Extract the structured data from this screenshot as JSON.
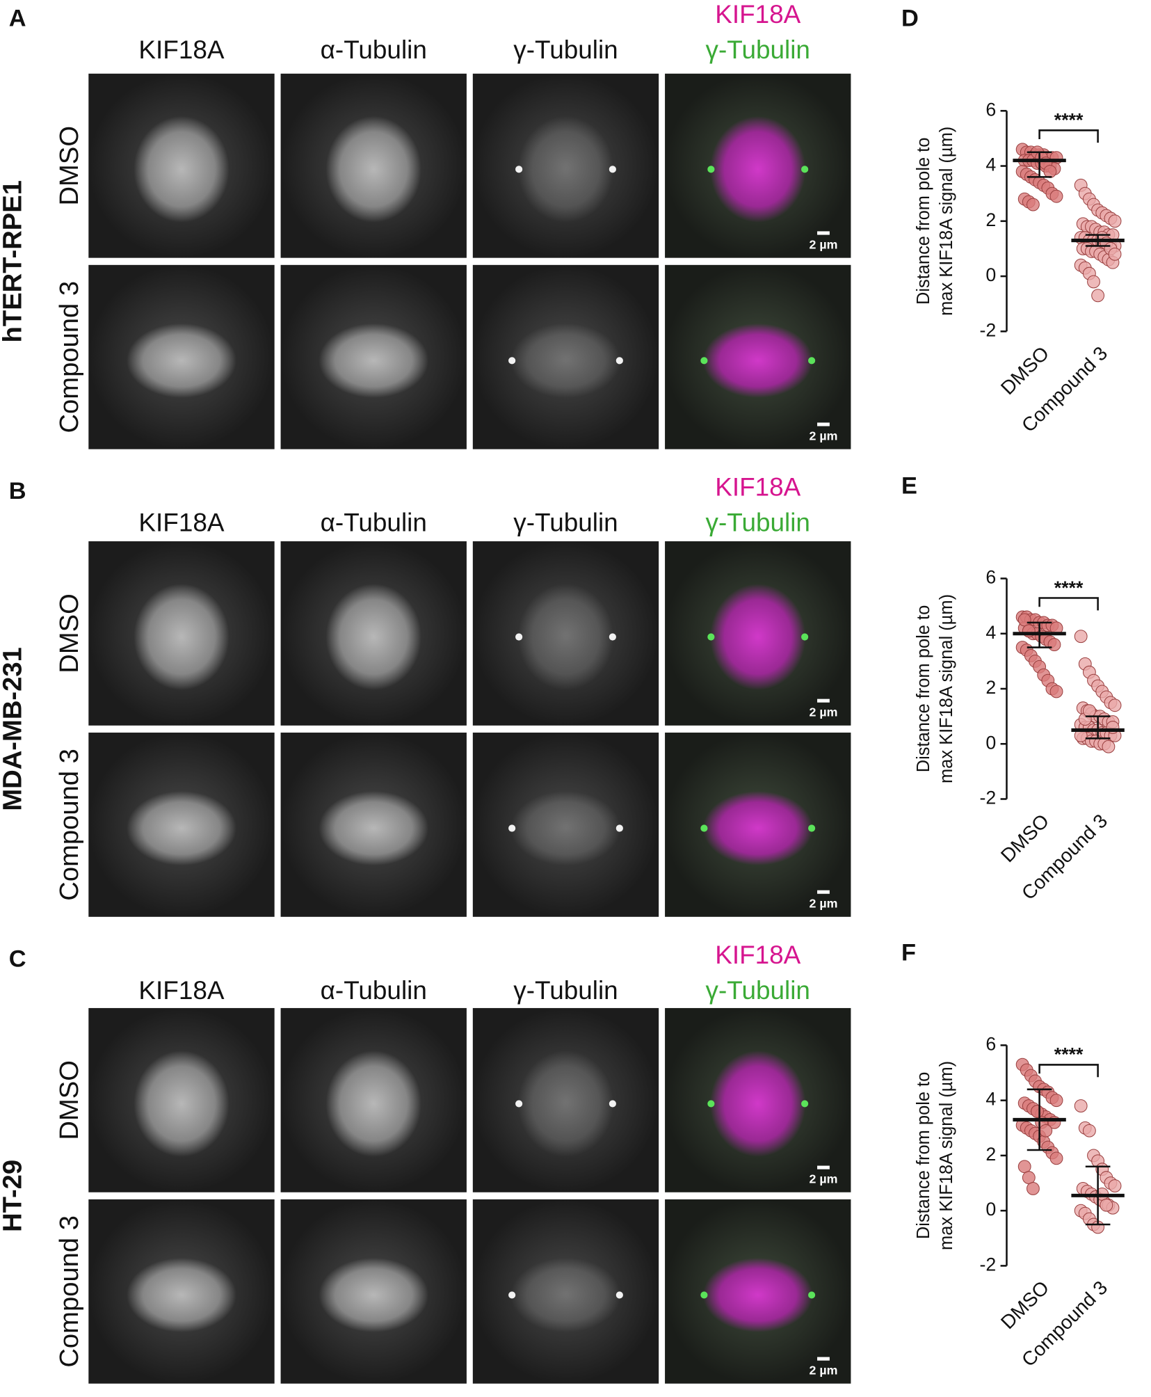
{
  "figure": {
    "panels": [
      {
        "letter": "A",
        "cell_line": "hTERT-RPE1",
        "channels": [
          "KIF18A",
          "α-Tubulin",
          "γ-Tubulin"
        ],
        "merge": [
          "KIF18A",
          "γ-Tubulin"
        ],
        "rows": [
          "DMSO",
          "Compound 3"
        ],
        "scale_bars": [
          "2 µm",
          "2 µm"
        ]
      },
      {
        "letter": "B",
        "cell_line": "MDA-MB-231",
        "channels": [
          "KIF18A",
          "α-Tubulin",
          "γ-Tubulin"
        ],
        "merge": [
          "KIF18A",
          "γ-Tubulin"
        ],
        "rows": [
          "DMSO",
          "Compound 3"
        ],
        "scale_bars": [
          "2 µm",
          "2 µm"
        ]
      },
      {
        "letter": "C",
        "cell_line": "HT-29",
        "channels": [
          "KIF18A",
          "α-Tubulin",
          "γ-Tubulin"
        ],
        "merge": [
          "KIF18A",
          "γ-Tubulin"
        ],
        "rows": [
          "DMSO",
          "Compound 3"
        ],
        "scale_bars": [
          "2 µm",
          "2 µm"
        ]
      }
    ]
  },
  "chart_data": [
    {
      "type": "dotplot",
      "panel": "D",
      "ylabel": [
        "Distance from pole to",
        "max KIF18A signal (µm)"
      ],
      "categories": [
        "DMSO",
        "Compound 3"
      ],
      "colors": [
        "#d97a7a",
        "#eaa9a9"
      ],
      "significance": "****",
      "ylim": [
        -2,
        6
      ],
      "yticks": [
        -2,
        0,
        2,
        4,
        6
      ],
      "groups": [
        {
          "values": [
            4.6,
            4.5,
            4.5,
            4.4,
            4.4,
            4.4,
            4.3,
            4.3,
            4.3,
            4.2,
            4.2,
            4.2,
            4.1,
            4.1,
            4.0,
            4.0,
            3.9,
            3.8,
            3.7,
            3.6,
            3.5,
            3.4,
            3.3,
            3.2,
            3.0,
            2.9,
            2.8,
            2.7,
            2.6,
            4.5,
            4.3,
            4.1,
            3.8
          ],
          "center": 4.2,
          "whisker": [
            3.6,
            4.5
          ]
        },
        {
          "values": [
            3.3,
            3.0,
            2.8,
            2.6,
            2.4,
            2.3,
            2.2,
            2.1,
            2.0,
            1.9,
            1.8,
            1.8,
            1.7,
            1.6,
            1.6,
            1.5,
            1.5,
            1.4,
            1.4,
            1.3,
            1.3,
            1.3,
            1.2,
            1.2,
            1.1,
            1.1,
            1.0,
            1.0,
            0.9,
            0.9,
            0.8,
            0.7,
            0.6,
            0.5,
            0.4,
            0.3,
            0.1,
            -0.2,
            -0.7,
            1.4,
            1.2,
            1.0,
            0.8
          ],
          "center": 1.3,
          "whisker": [
            1.1,
            1.5
          ]
        }
      ]
    },
    {
      "type": "dotplot",
      "panel": "E",
      "ylabel": [
        "Distance from pole to",
        "max KIF18A signal (µm)"
      ],
      "categories": [
        "DMSO",
        "Compound 3"
      ],
      "colors": [
        "#d97a7a",
        "#eaa9a9"
      ],
      "significance": "****",
      "ylim": [
        -2,
        6
      ],
      "yticks": [
        -2,
        0,
        2,
        4,
        6
      ],
      "groups": [
        {
          "values": [
            4.6,
            4.6,
            4.5,
            4.5,
            4.4,
            4.4,
            4.3,
            4.3,
            4.2,
            4.2,
            4.1,
            4.0,
            4.0,
            3.9,
            3.8,
            3.7,
            3.6,
            3.5,
            3.4,
            3.2,
            3.0,
            2.8,
            2.5,
            2.3,
            2.0,
            1.9,
            4.5,
            4.1
          ],
          "center": 4.0,
          "whisker": [
            3.5,
            4.4
          ]
        },
        {
          "values": [
            3.9,
            2.9,
            2.6,
            2.3,
            2.1,
            1.9,
            1.7,
            1.5,
            1.4,
            1.3,
            1.2,
            1.1,
            1.0,
            1.0,
            0.9,
            0.8,
            0.8,
            0.7,
            0.6,
            0.6,
            0.5,
            0.5,
            0.4,
            0.4,
            0.3,
            0.3,
            0.2,
            0.2,
            0.1,
            0.1,
            0.0,
            0.0,
            -0.1,
            0.6,
            0.3,
            0.9,
            1.2
          ],
          "center": 0.5,
          "whisker": [
            0.2,
            1.0
          ]
        }
      ]
    },
    {
      "type": "dotplot",
      "panel": "F",
      "ylabel": [
        "Distance from pole to",
        "max KIF18A signal (µm)"
      ],
      "categories": [
        "DMSO",
        "Compound 3"
      ],
      "colors": [
        "#d97a7a",
        "#eaa9a9"
      ],
      "significance": "****",
      "ylim": [
        -2,
        6
      ],
      "yticks": [
        -2,
        0,
        2,
        4,
        6
      ],
      "groups": [
        {
          "values": [
            5.3,
            5.1,
            4.9,
            4.7,
            4.5,
            4.4,
            4.3,
            4.1,
            4.0,
            3.9,
            3.8,
            3.7,
            3.6,
            3.5,
            3.4,
            3.3,
            3.2,
            3.1,
            3.0,
            2.9,
            2.8,
            2.7,
            2.5,
            2.3,
            2.1,
            1.9,
            1.6,
            1.2,
            0.8,
            3.6,
            3.2,
            2.9
          ],
          "center": 3.3,
          "whisker": [
            2.2,
            4.4
          ]
        },
        {
          "values": [
            3.8,
            3.0,
            2.9,
            2.0,
            1.8,
            1.5,
            1.2,
            1.0,
            0.9,
            0.8,
            0.7,
            0.6,
            0.5,
            0.4,
            0.3,
            0.2,
            0.1,
            0.0,
            -0.1,
            -0.3,
            -0.5,
            -0.6,
            0.6,
            0.2
          ],
          "center": 0.55,
          "whisker": [
            -0.5,
            1.6
          ]
        }
      ]
    }
  ]
}
